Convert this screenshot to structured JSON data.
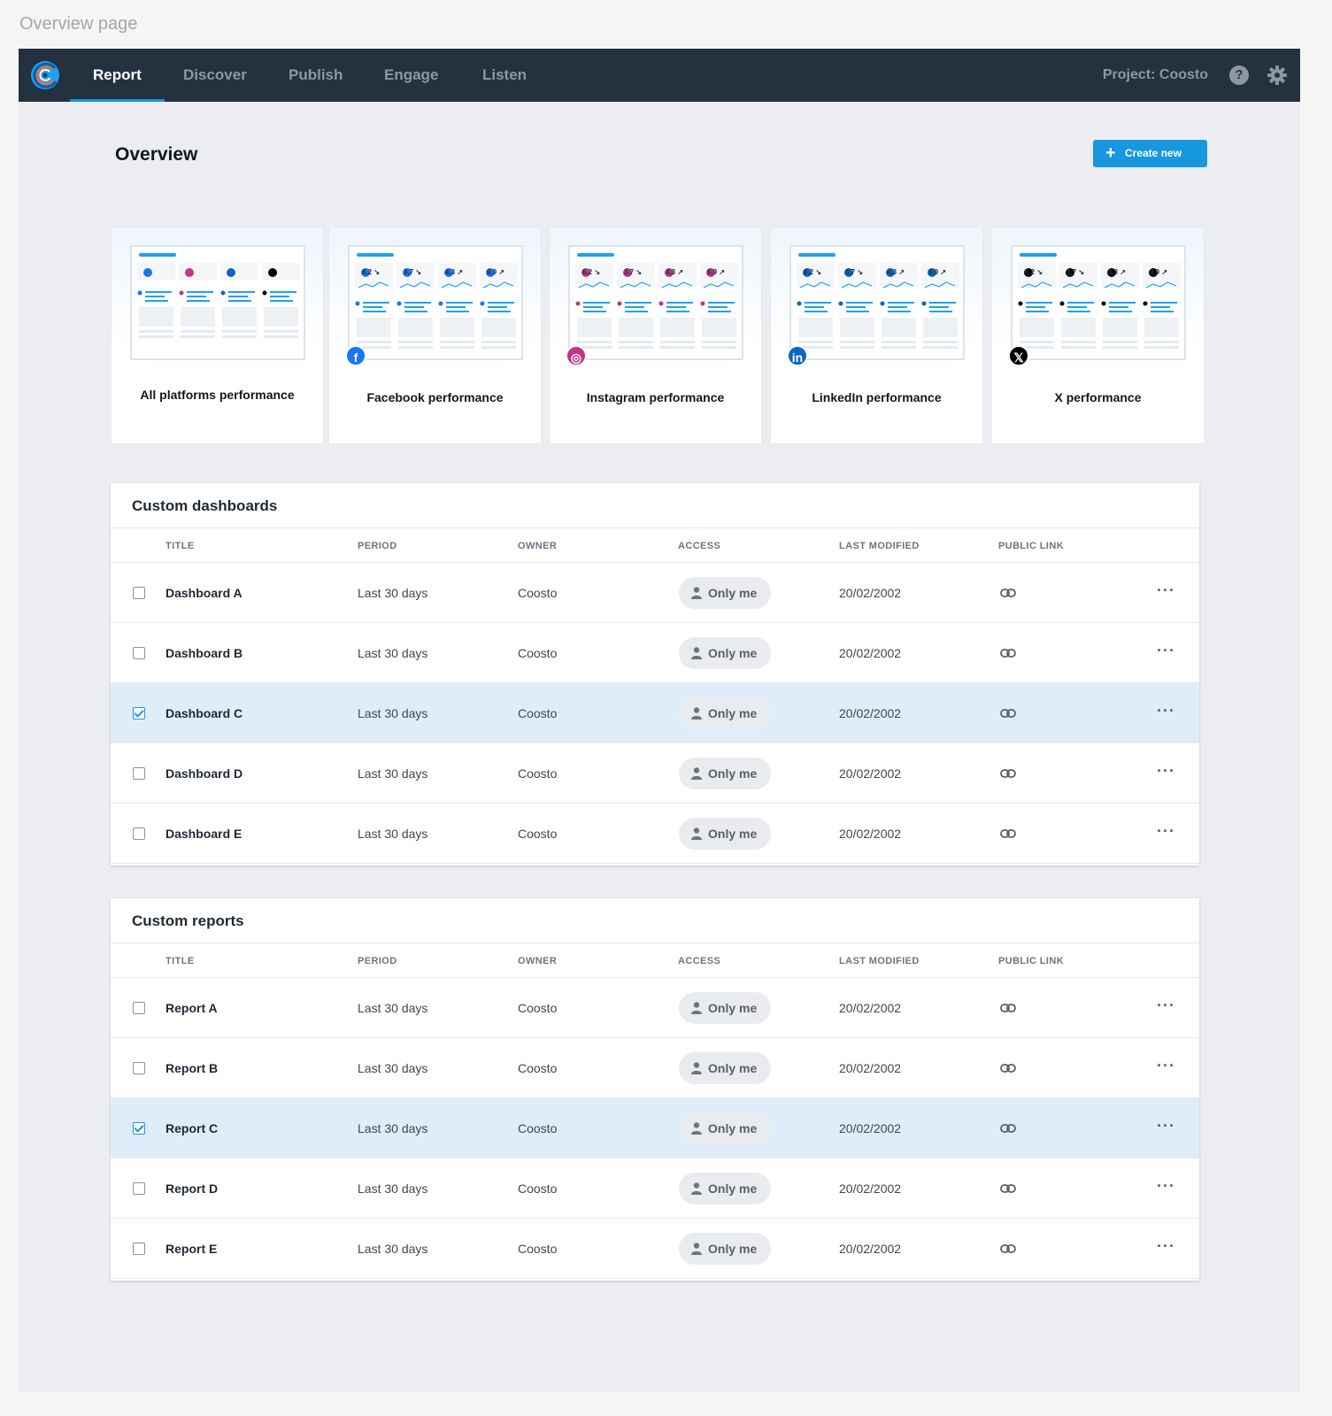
{
  "page_label": "Overview page",
  "nav": {
    "items": [
      {
        "label": "Report",
        "active": true
      },
      {
        "label": "Discover",
        "active": false
      },
      {
        "label": "Publish",
        "active": false
      },
      {
        "label": "Engage",
        "active": false
      },
      {
        "label": "Listen",
        "active": false
      }
    ],
    "project": "Project: Coosto",
    "help_symbol": "?"
  },
  "header": {
    "title": "Overview",
    "create_label": "Create new"
  },
  "templates": [
    {
      "label": "All platforms performance",
      "platform": "all"
    },
    {
      "label": "Facebook performance",
      "platform": "facebook",
      "badge": "f",
      "color": "#1877f2"
    },
    {
      "label": "Instagram performance",
      "platform": "instagram",
      "badge": "◎",
      "color": "#c13584"
    },
    {
      "label": "LinkedIn performance",
      "platform": "linkedin",
      "badge": "in",
      "color": "#0a66c2"
    },
    {
      "label": "X performance",
      "platform": "x",
      "badge": "𝕏",
      "color": "#000000"
    }
  ],
  "preview_metrics": [
    "6,2 ↘",
    "3,7 ↘",
    "4,3 ↗",
    "9,9 ↗"
  ],
  "columns": {
    "title": "TITLE",
    "period": "PERIOD",
    "owner": "OWNER",
    "access": "ACCESS",
    "last_modified": "LAST MODIFIED",
    "public_link": "PUBLIC LINK"
  },
  "dashboards": {
    "title": "Custom dashboards",
    "rows": [
      {
        "title": "Dashboard A",
        "period": "Last 30 days",
        "owner": "Coosto",
        "access": "Only me",
        "modified": "20/02/2002",
        "selected": false
      },
      {
        "title": "Dashboard B",
        "period": "Last 30 days",
        "owner": "Coosto",
        "access": "Only me",
        "modified": "20/02/2002",
        "selected": false
      },
      {
        "title": "Dashboard C",
        "period": "Last 30 days",
        "owner": "Coosto",
        "access": "Only me",
        "modified": "20/02/2002",
        "selected": true
      },
      {
        "title": "Dashboard D",
        "period": "Last 30 days",
        "owner": "Coosto",
        "access": "Only me",
        "modified": "20/02/2002",
        "selected": false
      },
      {
        "title": "Dashboard E",
        "period": "Last 30 days",
        "owner": "Coosto",
        "access": "Only me",
        "modified": "20/02/2002",
        "selected": false
      }
    ]
  },
  "reports": {
    "title": "Custom reports",
    "rows": [
      {
        "title": "Report A",
        "period": "Last 30 days",
        "owner": "Coosto",
        "access": "Only me",
        "modified": "20/02/2002",
        "selected": false
      },
      {
        "title": "Report B",
        "period": "Last 30 days",
        "owner": "Coosto",
        "access": "Only me",
        "modified": "20/02/2002",
        "selected": false
      },
      {
        "title": "Report C",
        "period": "Last 30 days",
        "owner": "Coosto",
        "access": "Only me",
        "modified": "20/02/2002",
        "selected": true
      },
      {
        "title": "Report D",
        "period": "Last 30 days",
        "owner": "Coosto",
        "access": "Only me",
        "modified": "20/02/2002",
        "selected": false
      },
      {
        "title": "Report E",
        "period": "Last 30 days",
        "owner": "Coosto",
        "access": "Only me",
        "modified": "20/02/2002",
        "selected": false
      }
    ]
  },
  "colors": {
    "nav_bg": "#243240",
    "accent": "#1797e0",
    "selected_row": "#deedf9"
  }
}
